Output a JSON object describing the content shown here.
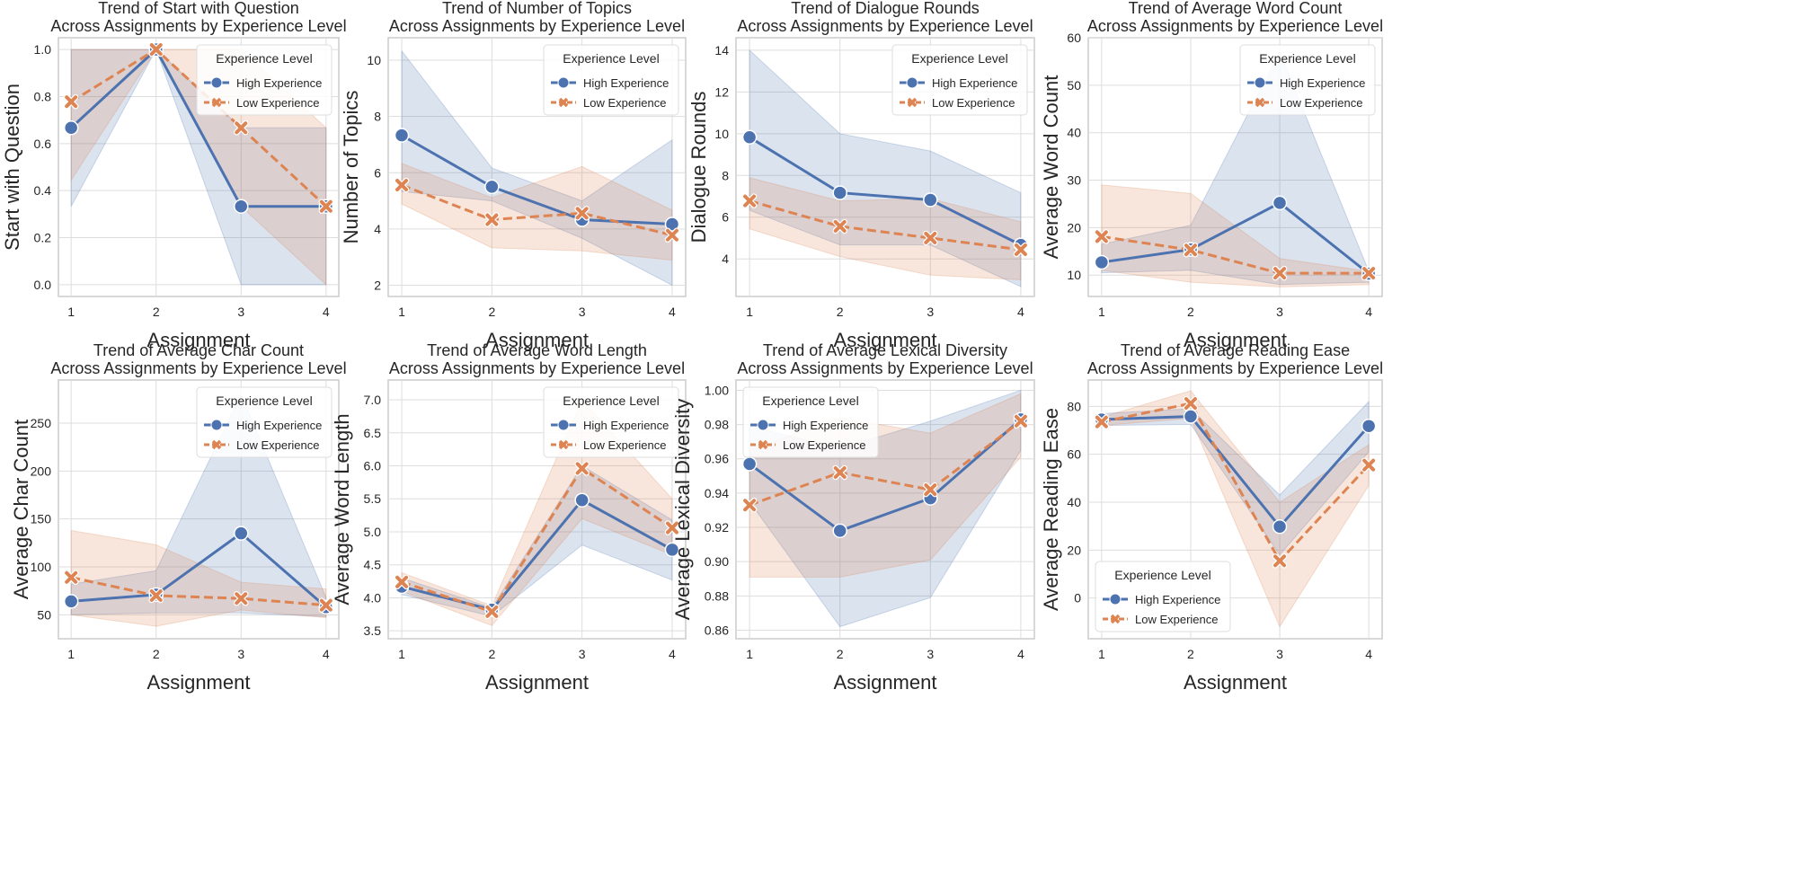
{
  "colors": {
    "high": "#4c72b0",
    "low": "#dd8452"
  },
  "legend_title": "Experience Level",
  "series_names": [
    "High Experience",
    "Low Experience"
  ],
  "chart_data": [
    {
      "type": "line",
      "title": "Trend of Start with Question\nAcross Assignments by Experience Level",
      "xlabel": "Assignment",
      "ylabel": "Start with Question",
      "x": [
        1,
        2,
        3,
        4
      ],
      "ylim": [
        -0.05,
        1.05
      ],
      "yticks": [
        0.0,
        0.2,
        0.4,
        0.6,
        0.8,
        1.0
      ],
      "ytick_decimals": 1,
      "legend": "upper-right",
      "grid": true,
      "series": [
        {
          "name": "High Experience",
          "values": [
            0.667,
            1.0,
            0.333,
            0.333
          ],
          "ci": [
            [
              0.333,
              1.0
            ],
            [
              1.0,
              1.0
            ],
            [
              0.0,
              0.667
            ],
            [
              0.0,
              0.667
            ]
          ]
        },
        {
          "name": "Low Experience",
          "values": [
            0.778,
            1.0,
            0.667,
            0.333
          ],
          "ci": [
            [
              0.444,
              1.0
            ],
            [
              1.0,
              1.0
            ],
            [
              0.333,
              1.0
            ],
            [
              0.0,
              0.667
            ]
          ]
        }
      ]
    },
    {
      "type": "line",
      "title": "Trend of Number of Topics\nAcross Assignments by Experience Level",
      "xlabel": "Assignment",
      "ylabel": "Number of Topics",
      "x": [
        1,
        2,
        3,
        4
      ],
      "ylim": [
        1.6,
        10.8
      ],
      "yticks": [
        2,
        4,
        6,
        8,
        10
      ],
      "ytick_decimals": 0,
      "legend": "upper-right",
      "grid": true,
      "series": [
        {
          "name": "High Experience",
          "values": [
            7.33,
            5.5,
            4.33,
            4.17
          ],
          "ci": [
            [
              5.33,
              10.33
            ],
            [
              5.0,
              6.17
            ],
            [
              3.67,
              5.0
            ],
            [
              2.0,
              7.17
            ]
          ]
        },
        {
          "name": "Low Experience",
          "values": [
            5.56,
            4.33,
            4.56,
            3.78
          ],
          "ci": [
            [
              4.89,
              6.33
            ],
            [
              3.33,
              5.11
            ],
            [
              3.22,
              6.22
            ],
            [
              2.89,
              4.67
            ]
          ]
        }
      ]
    },
    {
      "type": "line",
      "title": "Trend of Dialogue Rounds\nAcross Assignments by Experience Level",
      "xlabel": "Assignment",
      "ylabel": "Dialogue Rounds",
      "x": [
        1,
        2,
        3,
        4
      ],
      "ylim": [
        2.2,
        14.6
      ],
      "yticks": [
        4,
        6,
        8,
        10,
        12,
        14
      ],
      "ytick_decimals": 0,
      "legend": "upper-right",
      "grid": true,
      "series": [
        {
          "name": "High Experience",
          "values": [
            9.83,
            7.17,
            6.83,
            4.67
          ],
          "ci": [
            [
              6.33,
              14.0
            ],
            [
              4.67,
              10.0
            ],
            [
              4.67,
              9.17
            ],
            [
              2.67,
              7.17
            ]
          ]
        },
        {
          "name": "Low Experience",
          "values": [
            6.78,
            5.56,
            5.0,
            4.44
          ],
          "ci": [
            [
              5.44,
              7.89
            ],
            [
              4.11,
              6.78
            ],
            [
              3.22,
              6.89
            ],
            [
              3.0,
              5.78
            ]
          ]
        }
      ]
    },
    {
      "type": "line",
      "title": "Trend of Average Word Count\nAcross Assignments by Experience Level",
      "xlabel": "Assignment",
      "ylabel": "Average Word Count",
      "x": [
        1,
        2,
        3,
        4
      ],
      "ylim": [
        5.5,
        60
      ],
      "yticks": [
        10,
        20,
        30,
        40,
        50,
        60
      ],
      "ytick_decimals": 0,
      "legend": "upper-right",
      "grid": true,
      "series": [
        {
          "name": "High Experience",
          "values": [
            12.7,
            15.4,
            25.2,
            10.3
          ],
          "ci": [
            [
              10.5,
              16.5
            ],
            [
              11.0,
              20.5
            ],
            [
              8.0,
              57.0
            ],
            [
              8.5,
              10.8
            ]
          ]
        },
        {
          "name": "Low Experience",
          "values": [
            18.1,
            15.3,
            10.4,
            10.4
          ],
          "ci": [
            [
              11.0,
              29.0
            ],
            [
              8.5,
              27.2
            ],
            [
              7.5,
              13.5
            ],
            [
              8.0,
              10.8
            ]
          ]
        }
      ]
    },
    {
      "type": "line",
      "title": "Trend of Average Char Count\nAcross Assignments by Experience Level",
      "xlabel": "Assignment",
      "ylabel": "Average Char Count",
      "x": [
        1,
        2,
        3,
        4
      ],
      "ylim": [
        25,
        295
      ],
      "yticks": [
        50,
        100,
        150,
        200,
        250
      ],
      "ytick_decimals": 0,
      "legend": "upper-right",
      "grid": true,
      "series": [
        {
          "name": "High Experience",
          "values": [
            64,
            71,
            135,
            58
          ],
          "ci": [
            [
              50,
              82
            ],
            [
              52,
              96
            ],
            [
              52,
              280
            ],
            [
              48,
              68
            ]
          ]
        },
        {
          "name": "Low Experience",
          "values": [
            89,
            70,
            67,
            60
          ],
          "ci": [
            [
              50,
              138
            ],
            [
              38,
              123
            ],
            [
              55,
              84
            ],
            [
              47,
              77
            ]
          ]
        }
      ]
    },
    {
      "type": "line",
      "title": "Trend of Average Word Length\nAcross Assignments by Experience Level",
      "xlabel": "Assignment",
      "ylabel": "Average Word Length",
      "x": [
        1,
        2,
        3,
        4
      ],
      "ylim": [
        3.38,
        7.3
      ],
      "yticks": [
        3.5,
        4.0,
        4.5,
        5.0,
        5.5,
        6.0,
        6.5,
        7.0
      ],
      "ytick_decimals": 1,
      "legend": "upper-right",
      "grid": true,
      "series": [
        {
          "name": "High Experience",
          "values": [
            4.17,
            3.82,
            5.48,
            4.73
          ],
          "ci": [
            [
              4.05,
              4.3
            ],
            [
              3.72,
              3.85
            ],
            [
              4.8,
              6.0
            ],
            [
              4.27,
              5.18
            ]
          ]
        },
        {
          "name": "Low Experience",
          "values": [
            4.24,
            3.79,
            5.96,
            5.06
          ],
          "ci": [
            [
              4.1,
              4.38
            ],
            [
              3.58,
              3.88
            ],
            [
              5.2,
              7.0
            ],
            [
              4.65,
              5.5
            ]
          ]
        }
      ]
    },
    {
      "type": "line",
      "title": "Trend of Average Lexical Diversity\nAcross Assignments by Experience Level",
      "xlabel": "Assignment",
      "ylabel": "Average Lexical Diversity",
      "x": [
        1,
        2,
        3,
        4
      ],
      "ylim": [
        0.855,
        1.006
      ],
      "yticks": [
        0.86,
        0.88,
        0.9,
        0.92,
        0.94,
        0.96,
        0.98,
        1.0
      ],
      "ytick_decimals": 2,
      "legend": "upper-left",
      "grid": true,
      "series": [
        {
          "name": "High Experience",
          "values": [
            0.957,
            0.918,
            0.937,
            0.983
          ],
          "ci": [
            [
              0.935,
              0.979
            ],
            [
              0.862,
              0.966
            ],
            [
              0.879,
              0.982
            ],
            [
              0.965,
              1.0
            ]
          ]
        },
        {
          "name": "Low Experience",
          "values": [
            0.933,
            0.952,
            0.942,
            0.982
          ],
          "ci": [
            [
              0.891,
              0.965
            ],
            [
              0.891,
              0.984
            ],
            [
              0.901,
              0.975
            ],
            [
              0.961,
              0.998
            ]
          ]
        }
      ]
    },
    {
      "type": "line",
      "title": "Trend of Average Reading Ease\nAcross Assignments by Experience Level",
      "xlabel": "Assignment",
      "ylabel": "Average Reading Ease",
      "x": [
        1,
        2,
        3,
        4
      ],
      "ylim": [
        -17,
        91
      ],
      "yticks": [
        0,
        20,
        40,
        60,
        80
      ],
      "ytick_decimals": 0,
      "legend": "lower-left",
      "grid": true,
      "series": [
        {
          "name": "High Experience",
          "values": [
            74.5,
            75.8,
            29.8,
            71.8
          ],
          "ci": [
            [
              72,
              77
            ],
            [
              72.5,
              79
            ],
            [
              18,
              43
            ],
            [
              61,
              82
            ]
          ]
        },
        {
          "name": "Low Experience",
          "values": [
            73.5,
            81.2,
            15.5,
            55.5
          ],
          "ci": [
            [
              72,
              75.5
            ],
            [
              75,
              86.5
            ],
            [
              -12,
              40
            ],
            [
              47,
              64
            ]
          ]
        }
      ]
    }
  ]
}
